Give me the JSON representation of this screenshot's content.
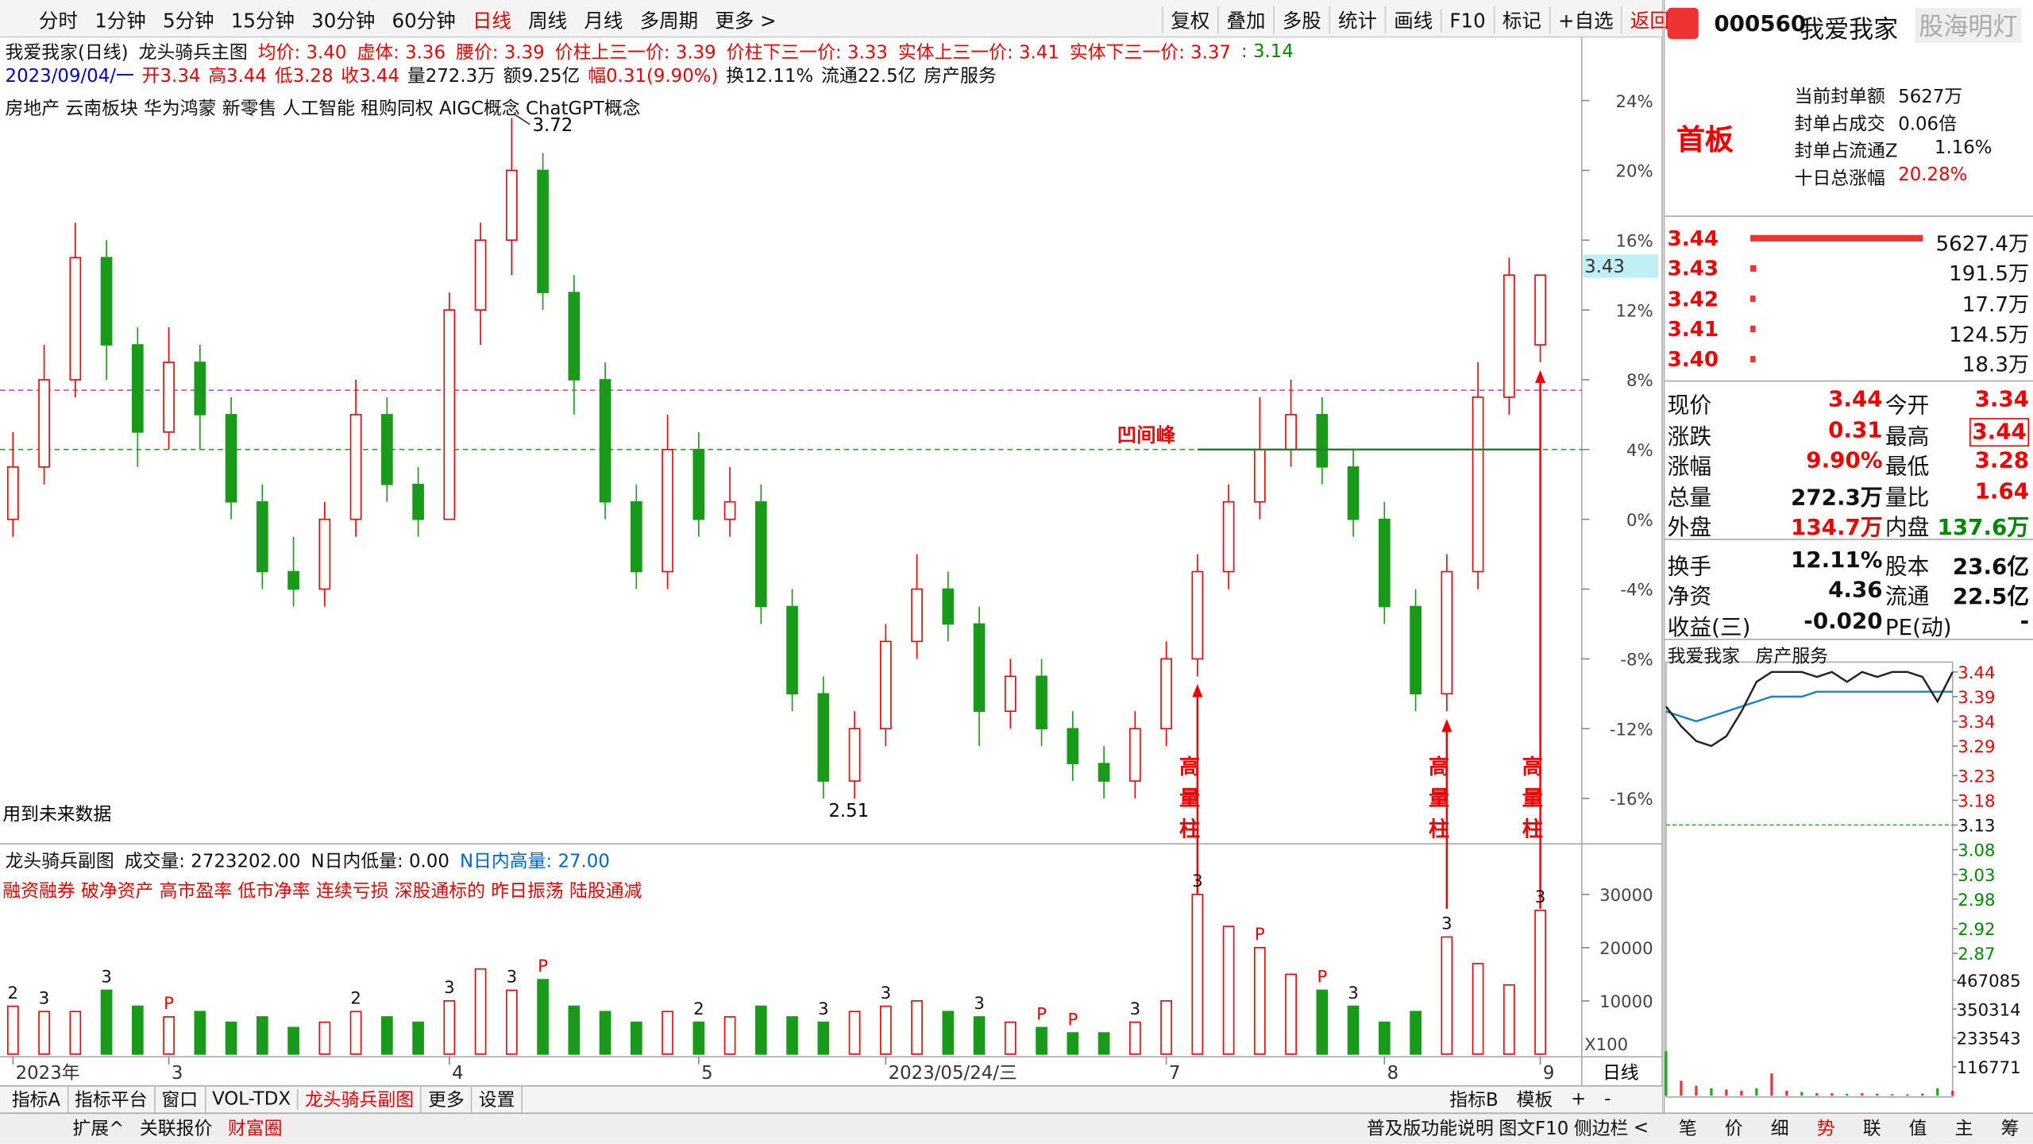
{
  "toolbar": {
    "periods": [
      "分时",
      "1分钟",
      "5分钟",
      "15分钟",
      "30分钟",
      "60分钟",
      "日线",
      "周线",
      "月线",
      "多周期",
      "更多 >"
    ],
    "tools": [
      "复权",
      "叠加",
      "多股",
      "统计",
      "画线",
      "F10",
      "标记",
      "+自选",
      "返回"
    ]
  },
  "info": {
    "title": "我爱我家(日线)",
    "indicator": "龙头骑兵主图",
    "indicator_values": [
      "均价: 3.40",
      "虚体: 3.36",
      "腰价: 3.39",
      "价柱上三一价: 3.39",
      "价柱下三一价: 3.33",
      "实体上三一价: 3.41",
      "实体下三一价: 3.37",
      ": 3.14"
    ],
    "quote_line": [
      "2023/09/04/一",
      "开3.34",
      "高3.44",
      "低3.28",
      "收3.44",
      "量272.3万",
      "额9.25亿",
      "幅0.31(9.90%)",
      "换12.11%",
      "流通22.5亿",
      "房产服务"
    ],
    "concepts": "房地产 云南板块 华为鸿蒙 新零售 人工智能 租购同权 AIGC概念 ChatGPT概念"
  },
  "chart_data": [
    {
      "type": "candlestick",
      "period_label": "日线",
      "last_price_label": "3.43",
      "categories": [
        "2023年",
        null,
        null,
        null,
        null,
        "3",
        null,
        null,
        null,
        null,
        null,
        null,
        null,
        null,
        "4",
        null,
        null,
        null,
        null,
        null,
        null,
        null,
        "5",
        null,
        null,
        null,
        null,
        null,
        "2023/05/24/三",
        null,
        null,
        null,
        null,
        null,
        null,
        null,
        null,
        "7",
        null,
        null,
        null,
        null,
        null,
        null,
        "8",
        null,
        null,
        null,
        null,
        "9"
      ],
      "open": [
        0,
        3,
        8,
        15,
        10,
        5,
        9,
        6,
        1,
        -3,
        -4,
        0,
        6,
        2,
        0,
        12,
        16,
        20,
        13,
        8,
        1,
        -3,
        4,
        0,
        1,
        -5,
        -10,
        -15,
        -12,
        -7,
        -4,
        -6,
        -11,
        -9,
        -12,
        -14,
        -15,
        -12,
        -8,
        -3,
        1,
        4,
        6,
        3,
        0,
        -5,
        -10,
        -3,
        7,
        10
      ],
      "close": [
        3,
        8,
        15,
        10,
        5,
        9,
        6,
        1,
        -3,
        -4,
        0,
        6,
        2,
        0,
        12,
        16,
        20,
        13,
        8,
        1,
        -3,
        4,
        0,
        1,
        -5,
        -10,
        -15,
        -12,
        -7,
        -4,
        -6,
        -11,
        -9,
        -12,
        -14,
        -15,
        -12,
        -8,
        -3,
        1,
        4,
        6,
        3,
        0,
        -5,
        -10,
        -3,
        7,
        14,
        14
      ],
      "high": [
        5,
        10,
        17,
        16,
        11,
        11,
        10,
        7,
        2,
        -1,
        1,
        8,
        7,
        3,
        13,
        17,
        23,
        21,
        14,
        9,
        2,
        6,
        5,
        3,
        2,
        -4,
        -9,
        -11,
        -6,
        -2,
        -3,
        -5,
        -8,
        -8,
        -11,
        -13,
        -11,
        -7,
        -2,
        2,
        7,
        8,
        7,
        4,
        1,
        -4,
        -2,
        9,
        15,
        14
      ],
      "low": [
        -1,
        2,
        7,
        8,
        3,
        4,
        4,
        0,
        -4,
        -5,
        -5,
        -1,
        1,
        -1,
        0,
        10,
        14,
        12,
        6,
        0,
        -4,
        -4,
        -1,
        -1,
        -6,
        -11,
        -16,
        -16,
        -13,
        -8,
        -7,
        -13,
        -12,
        -13,
        -15,
        -16,
        -16,
        -13,
        -9,
        -4,
        0,
        3,
        2,
        -1,
        -6,
        -11,
        -11,
        -4,
        6,
        9
      ],
      "up_color": "#f00000",
      "down_color": "#1a9a1a",
      "ylim": [
        -18.6,
        25.3
      ],
      "yticks": [
        {
          "value": 24,
          "label": "24%"
        },
        {
          "value": 20,
          "label": "20%"
        },
        {
          "value": 16,
          "label": "16%"
        },
        {
          "value": 12,
          "label": "12%"
        },
        {
          "value": 8,
          "label": "8%"
        },
        {
          "value": 4,
          "label": "4%"
        },
        {
          "value": 0,
          "label": "0%"
        },
        {
          "value": -4,
          "label": "-4%"
        },
        {
          "value": -8,
          "label": "-8%"
        },
        {
          "value": -12,
          "label": "-12%"
        },
        {
          "value": -16,
          "label": "-16%"
        }
      ],
      "ref_lines": [
        {
          "value": 7.4,
          "color": "#cc44cc"
        },
        {
          "value": 4,
          "color": "#33a033"
        }
      ],
      "annotations": {
        "peak": "3.72",
        "trough": "2.51",
        "pattern": "凹间峰",
        "volume_note": "高量柱",
        "future_note": "用到未来数据"
      }
    },
    {
      "type": "bar",
      "title": "龙头骑兵副图",
      "stats": [
        "成交量: 2723202.00",
        "N日内低量: 0.00",
        "N日内高量: 27.00"
      ],
      "tags_line": "融资融券 破净资产 高市盈率 低市净率 连续亏损 深股通标的 昨日振荡 陆股通减",
      "unit_label": "X100",
      "values": [
        9000,
        8000,
        8000,
        12000,
        9000,
        7000,
        8000,
        6000,
        7000,
        5000,
        6000,
        8000,
        7000,
        6000,
        10000,
        16000,
        12000,
        14000,
        9000,
        8000,
        6000,
        8000,
        6000,
        7000,
        9000,
        7000,
        6000,
        8000,
        9000,
        10000,
        8000,
        7000,
        6000,
        5000,
        4000,
        4000,
        6000,
        10000,
        30000,
        24000,
        20000,
        15000,
        12000,
        9000,
        6000,
        8000,
        22000,
        17000,
        13000,
        27000
      ],
      "tags": [
        "2",
        "3",
        null,
        "3",
        null,
        "P",
        null,
        null,
        null,
        null,
        null,
        "2",
        null,
        null,
        "3",
        null,
        "3",
        "P",
        null,
        null,
        null,
        null,
        "2",
        null,
        null,
        null,
        "3",
        null,
        "3",
        null,
        null,
        "3",
        null,
        "P",
        "P",
        null,
        "3",
        null,
        "3",
        null,
        "P",
        null,
        "P",
        "3",
        null,
        null,
        "3",
        null,
        null,
        "3"
      ],
      "ylim": [
        0,
        39500
      ],
      "yticks": [
        10000,
        20000,
        30000
      ]
    }
  ],
  "bottom": {
    "tabs_left": [
      "指标A",
      "指标平台",
      "窗口",
      "VOL-TDX",
      "龙头骑兵副图",
      "更多",
      "设置"
    ],
    "tabs_right": [
      "指标B",
      "模板",
      "+",
      "-"
    ],
    "status_left": [
      "扩展^",
      "关联报价",
      "财富圈"
    ],
    "status_right": [
      "普及版功能说明",
      "图文F10",
      "侧边栏",
      "<"
    ],
    "side_tabs": [
      "笔",
      "价",
      "细",
      "势",
      "联",
      "值",
      "主",
      "筹"
    ]
  },
  "right_panel": {
    "code": "000560",
    "name": "我爱我家",
    "brand": "股海明灯",
    "board": "首板",
    "seal_stats": [
      [
        "当前封单额",
        "5627万"
      ],
      [
        "封单占成交",
        "0.06倍"
      ],
      [
        "封单占流通Z",
        "1.16%"
      ],
      [
        "十日总涨幅",
        "20.28%"
      ]
    ],
    "order_book": {
      "prices": [
        "3.44",
        "3.43",
        "3.42",
        "3.41",
        "3.40"
      ],
      "amounts": [
        5627.4,
        191.5,
        17.7,
        124.5,
        18.3
      ],
      "amount_labels": [
        "5627.4万",
        "191.5万",
        "17.7万",
        "124.5万",
        "18.3万"
      ]
    },
    "quote": [
      [
        "现价",
        "3.44",
        "今开",
        "3.34"
      ],
      [
        "涨跌",
        "0.31",
        "最高",
        "3.44"
      ],
      [
        "涨幅",
        "9.90%",
        "最低",
        "3.28"
      ],
      [
        "总量",
        "272.3万",
        "量比",
        "1.64"
      ],
      [
        "外盘",
        "134.7万",
        "内盘",
        "137.6万"
      ],
      [
        "换手",
        "12.11%",
        "股本",
        "23.6亿"
      ],
      [
        "净资",
        "4.36",
        "流通",
        "22.5亿"
      ],
      [
        "收益(三)",
        "-0.020",
        "PE(动)",
        "-"
      ]
    ],
    "mini": {
      "type": "line",
      "title": "我爱我家",
      "sector": "房产服务",
      "values": [
        3.37,
        3.33,
        3.3,
        3.29,
        3.31,
        3.36,
        3.42,
        3.44,
        3.44,
        3.44,
        3.43,
        3.44,
        3.42,
        3.44,
        3.43,
        3.44,
        3.44,
        3.43,
        3.38,
        3.44
      ],
      "avg": [
        3.36,
        3.35,
        3.34,
        3.35,
        3.36,
        3.37,
        3.38,
        3.39,
        3.39,
        3.39,
        3.4,
        3.4,
        3.4,
        3.4,
        3.4,
        3.4,
        3.4,
        3.4,
        3.4,
        3.4
      ],
      "ylim": [
        2.85,
        3.46
      ],
      "yticks": [
        3.44,
        3.39,
        3.34,
        3.29,
        3.23,
        3.18,
        3.13,
        3.08,
        3.03,
        2.98,
        2.92,
        2.87
      ],
      "volumes": [
        180000,
        60000,
        40000,
        30000,
        25000,
        20000,
        30000,
        90000,
        20000,
        15000,
        10000,
        10000,
        8000,
        10000,
        8000,
        6000,
        5000,
        8000,
        30000,
        20000
      ],
      "volume_ylim": [
        0,
        504000
      ],
      "volume_ticks": [
        467085,
        350314,
        233543,
        116771
      ]
    }
  }
}
